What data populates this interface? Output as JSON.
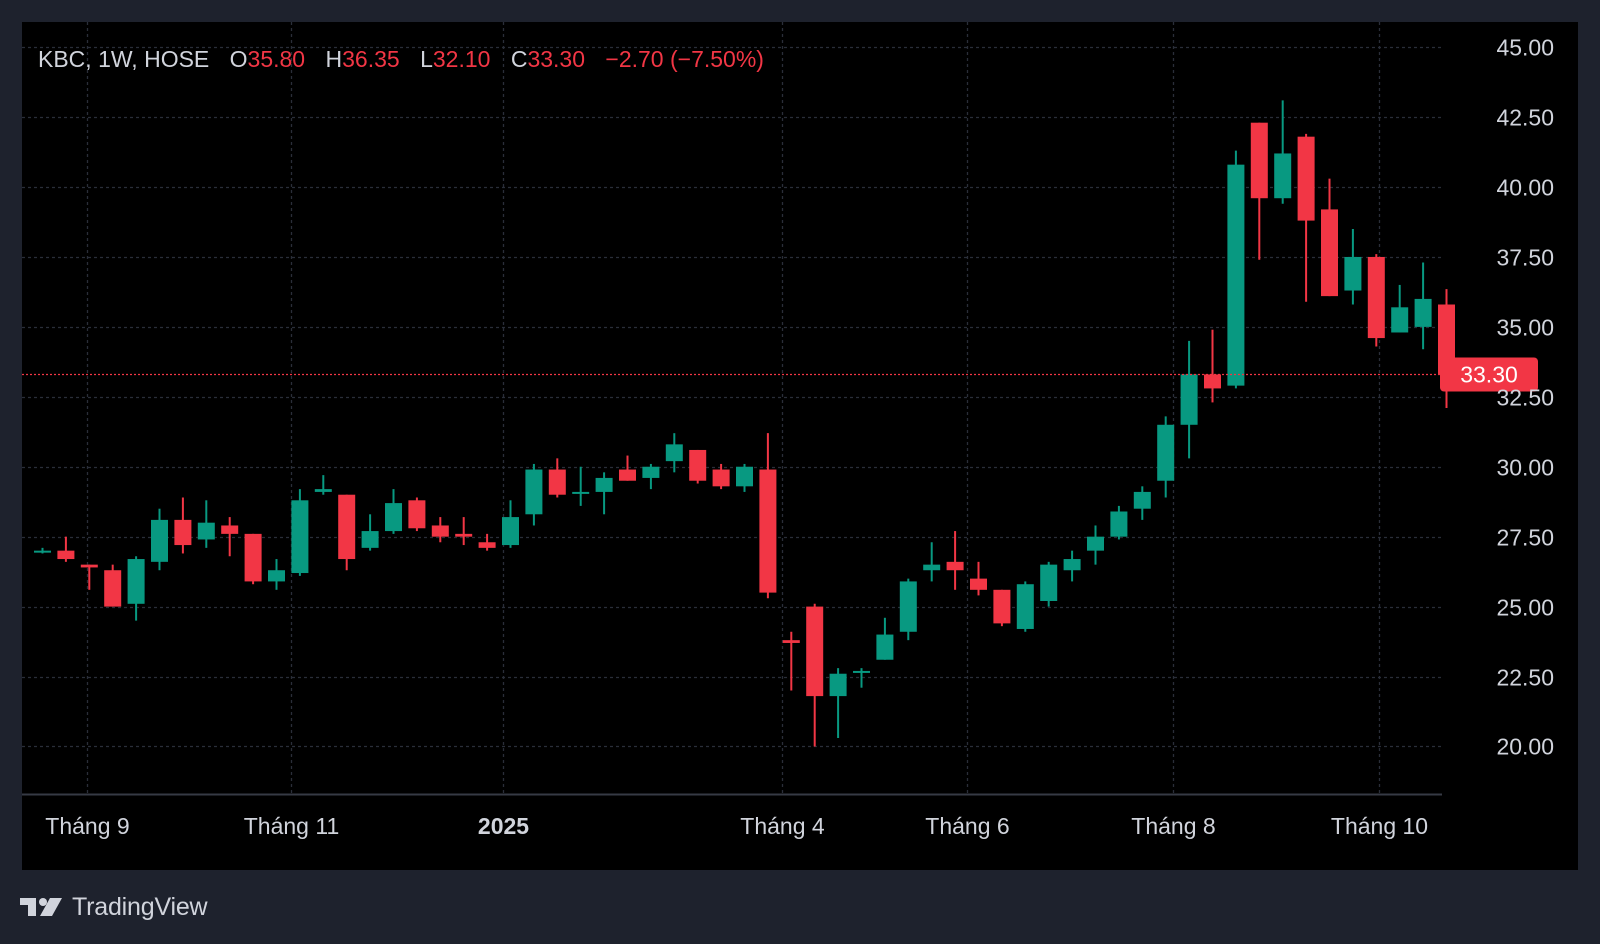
{
  "legend": {
    "symbol": "KBC, 1W, HOSE",
    "open_label": "O",
    "open": "35.80",
    "high_label": "H",
    "high": "36.35",
    "low_label": "L",
    "low": "32.10",
    "close_label": "C",
    "close": "33.30",
    "change": "−2.70 (−7.50%)"
  },
  "last_price_label": "33.30",
  "footer": {
    "brand": "TradingView"
  },
  "colors": {
    "up": "#089981",
    "down": "#f23645",
    "background": "#000000",
    "frame": "#1e222d",
    "text": "#d1d4dc"
  },
  "chart_data": {
    "type": "candlestick",
    "interval": "1W",
    "exchange": "HOSE",
    "y_axis": {
      "position": "right",
      "ticks": [
        "45.00",
        "42.50",
        "40.00",
        "37.50",
        "35.00",
        "32.50",
        "30.00",
        "27.50",
        "25.00",
        "22.50",
        "20.00"
      ],
      "range": [
        18.3,
        45.9
      ]
    },
    "x_axis": {
      "ticks": [
        {
          "label": "Tháng 9",
          "bold": false
        },
        {
          "label": "Tháng 11",
          "bold": false
        },
        {
          "label": "2025",
          "bold": true
        },
        {
          "label": "Tháng 4",
          "bold": false
        },
        {
          "label": "Tháng 6",
          "bold": false
        },
        {
          "label": "Tháng 8",
          "bold": false
        },
        {
          "label": "Tháng 10",
          "bold": false
        }
      ]
    },
    "grid": true,
    "last_price": 33.3,
    "candles": [
      [
        27.0,
        27.1,
        26.9,
        27.0
      ],
      [
        27.0,
        27.5,
        26.6,
        26.7
      ],
      [
        26.5,
        26.5,
        25.6,
        26.4
      ],
      [
        26.3,
        26.5,
        25.0,
        25.0
      ],
      [
        25.1,
        26.8,
        24.5,
        26.7
      ],
      [
        26.6,
        28.5,
        26.3,
        28.1
      ],
      [
        28.1,
        28.9,
        26.9,
        27.2
      ],
      [
        27.4,
        28.8,
        27.1,
        28.0
      ],
      [
        27.9,
        28.2,
        26.8,
        27.6
      ],
      [
        27.6,
        27.6,
        25.8,
        25.9
      ],
      [
        25.9,
        26.7,
        25.6,
        26.3
      ],
      [
        26.2,
        29.2,
        26.1,
        28.8
      ],
      [
        29.1,
        29.7,
        29.0,
        29.2
      ],
      [
        29.0,
        29.0,
        26.3,
        26.7
      ],
      [
        27.1,
        28.3,
        27.0,
        27.7
      ],
      [
        27.7,
        29.2,
        27.6,
        28.7
      ],
      [
        28.8,
        28.9,
        27.7,
        27.8
      ],
      [
        27.9,
        28.2,
        27.3,
        27.5
      ],
      [
        27.6,
        28.2,
        27.2,
        27.5
      ],
      [
        27.3,
        27.6,
        27.0,
        27.1
      ],
      [
        27.2,
        28.8,
        27.1,
        28.2
      ],
      [
        28.3,
        30.1,
        27.9,
        29.9
      ],
      [
        29.9,
        30.3,
        28.9,
        29.0
      ],
      [
        29.1,
        30.0,
        28.6,
        29.1
      ],
      [
        29.1,
        29.8,
        28.3,
        29.6
      ],
      [
        29.9,
        30.4,
        29.5,
        29.5
      ],
      [
        29.6,
        30.1,
        29.2,
        30.0
      ],
      [
        30.2,
        31.2,
        29.8,
        30.8
      ],
      [
        30.6,
        30.6,
        29.4,
        29.5
      ],
      [
        29.9,
        30.1,
        29.2,
        29.3
      ],
      [
        29.3,
        30.1,
        29.1,
        30.0
      ],
      [
        29.9,
        31.2,
        25.3,
        25.5
      ],
      [
        23.8,
        24.1,
        22.0,
        23.7
      ],
      [
        25.0,
        25.1,
        20.0,
        21.8
      ],
      [
        21.8,
        22.8,
        20.3,
        22.6
      ],
      [
        22.7,
        22.8,
        22.1,
        22.7
      ],
      [
        23.1,
        24.6,
        23.1,
        24.0
      ],
      [
        24.1,
        26.0,
        23.8,
        25.9
      ],
      [
        26.3,
        27.3,
        25.9,
        26.5
      ],
      [
        26.6,
        27.7,
        25.6,
        26.3
      ],
      [
        26.0,
        26.6,
        25.4,
        25.6
      ],
      [
        25.6,
        25.6,
        24.3,
        24.4
      ],
      [
        24.2,
        25.9,
        24.1,
        25.8
      ],
      [
        25.2,
        26.6,
        25.0,
        26.5
      ],
      [
        26.3,
        27.0,
        25.9,
        26.7
      ],
      [
        27.0,
        27.9,
        26.5,
        27.5
      ],
      [
        27.5,
        28.6,
        27.4,
        28.4
      ],
      [
        28.5,
        29.3,
        28.1,
        29.1
      ],
      [
        29.5,
        31.8,
        28.9,
        31.5
      ],
      [
        31.5,
        34.5,
        30.3,
        33.3
      ],
      [
        33.3,
        34.9,
        32.3,
        32.8
      ],
      [
        32.9,
        41.3,
        32.8,
        40.8
      ],
      [
        42.3,
        42.3,
        37.4,
        39.6
      ],
      [
        39.6,
        43.1,
        39.4,
        41.2
      ],
      [
        41.8,
        41.9,
        35.9,
        38.8
      ],
      [
        39.2,
        40.3,
        36.1,
        36.1
      ],
      [
        36.3,
        38.5,
        35.8,
        37.5
      ],
      [
        37.5,
        37.6,
        34.3,
        34.6
      ],
      [
        34.8,
        36.5,
        34.8,
        35.7
      ],
      [
        35.0,
        37.3,
        34.2,
        36.0
      ],
      [
        35.8,
        36.35,
        32.1,
        33.3
      ]
    ]
  }
}
